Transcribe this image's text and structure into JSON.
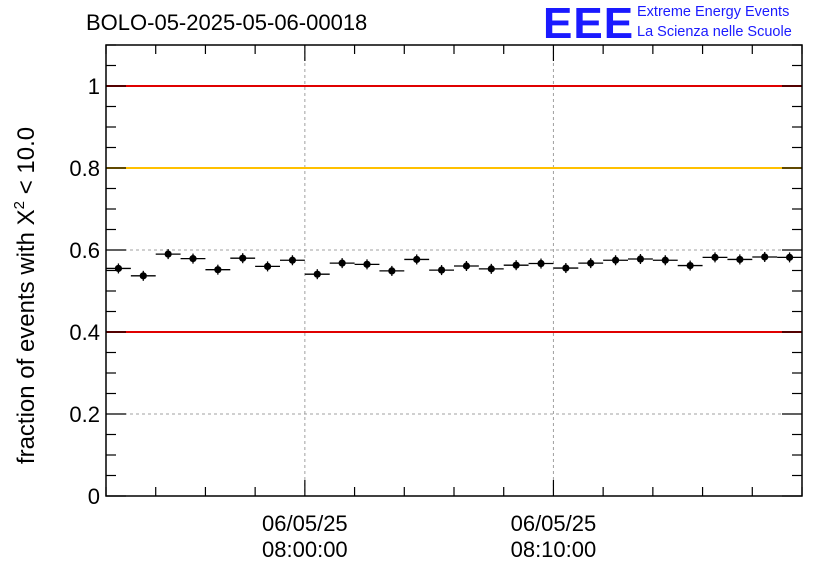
{
  "header": {
    "title": "BOLO-05-2025-05-06-00018",
    "logo": {
      "mark": "EEE",
      "line1": "Extreme Energy Events",
      "line2": "La Scienza nelle Scuole"
    }
  },
  "chart_data": {
    "type": "scatter",
    "title": "BOLO-05-2025-05-06-00018",
    "xlabel": "",
    "ylabel": {
      "prefix": "fraction of events with ",
      "symbol": "X",
      "sup": "2",
      "suffix": " < 10.0"
    },
    "ylim": [
      0,
      1.1
    ],
    "x_ticks": [
      {
        "date": "06/05/25",
        "time": "08:00:00",
        "minutes": 8
      },
      {
        "date": "06/05/25",
        "time": "08:10:00",
        "minutes": 18
      }
    ],
    "x_range_minutes": [
      0,
      28
    ],
    "y_ticks": [
      "0",
      "0.2",
      "0.4",
      "0.6",
      "0.8",
      "1"
    ],
    "y_tick_values": [
      0,
      0.2,
      0.4,
      0.6,
      0.8,
      1.0
    ],
    "grid": true,
    "reference_lines": [
      {
        "y": 1.0,
        "color": "#e00000"
      },
      {
        "y": 0.8,
        "color": "#ffc000"
      },
      {
        "y": 0.4,
        "color": "#e00000"
      }
    ],
    "series": [
      {
        "bin_width_minutes": 1,
        "x_minutes": [
          0.5,
          1.5,
          2.5,
          3.5,
          4.5,
          5.5,
          6.5,
          7.5,
          8.5,
          9.5,
          10.5,
          11.5,
          12.5,
          13.5,
          14.5,
          15.5,
          16.5,
          17.5,
          18.5,
          19.5,
          20.5,
          21.5,
          22.5,
          23.5,
          24.5,
          25.5,
          26.5,
          27.5
        ],
        "values": [
          0.555,
          0.537,
          0.59,
          0.579,
          0.552,
          0.58,
          0.56,
          0.575,
          0.541,
          0.568,
          0.565,
          0.549,
          0.577,
          0.551,
          0.561,
          0.554,
          0.563,
          0.567,
          0.556,
          0.568,
          0.575,
          0.578,
          0.575,
          0.562,
          0.582,
          0.577,
          0.583,
          0.582
        ],
        "color": "#000000"
      }
    ]
  }
}
